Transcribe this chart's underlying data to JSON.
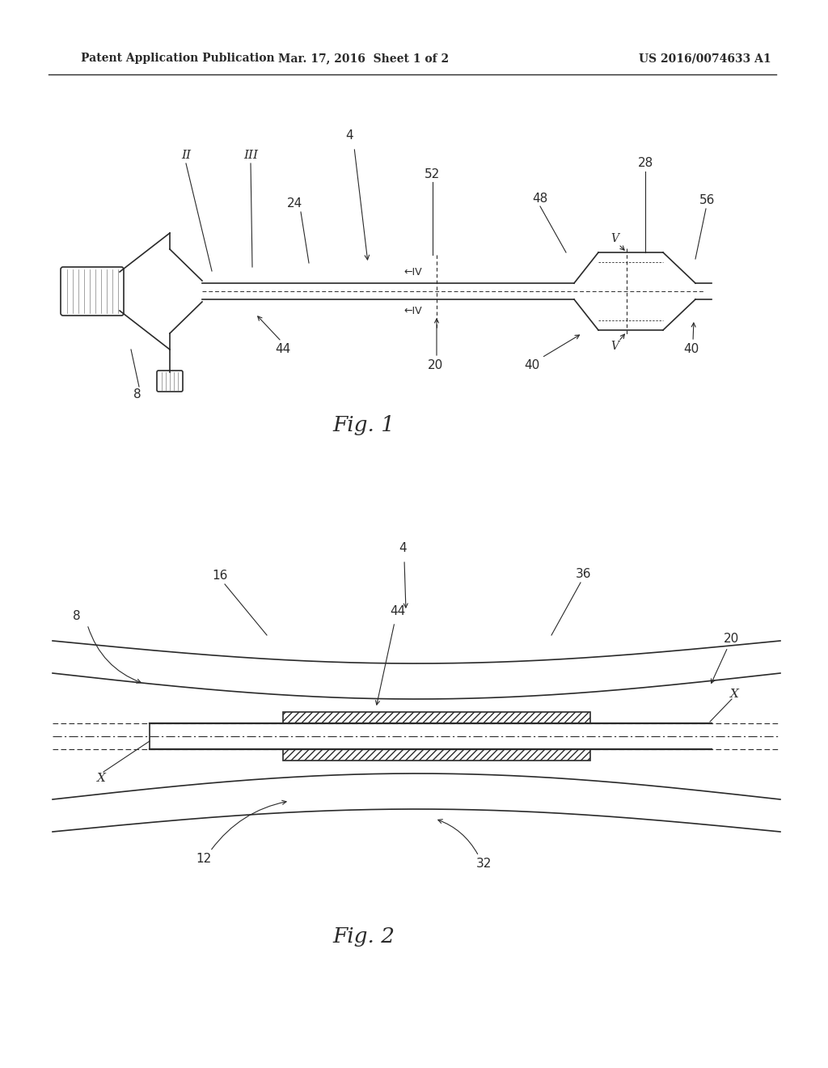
{
  "header_left": "Patent Application Publication",
  "header_center": "Mar. 17, 2016  Sheet 1 of 2",
  "header_right": "US 2016/0074633 A1",
  "fig1_label": "Fig. 1",
  "fig2_label": "Fig. 2",
  "bg_color": "#ffffff",
  "line_color": "#2a2a2a",
  "hatch_color": "#555555"
}
